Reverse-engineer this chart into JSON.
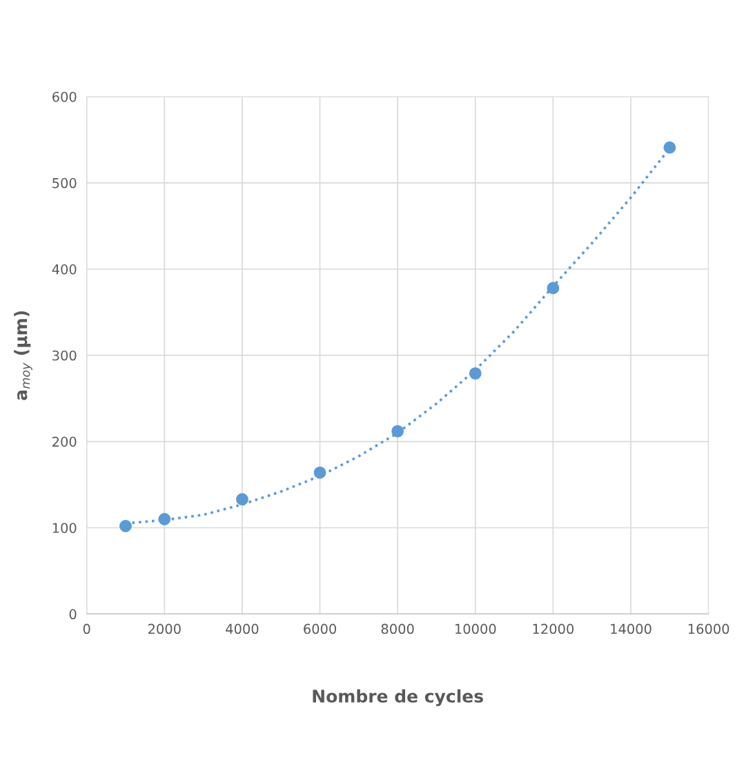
{
  "chart_data": {
    "type": "scatter",
    "xlabel": "Nombre de cycles",
    "ylabel": "a$_{moy}$ (µm)",
    "series": [
      {
        "color": "#5b9bd5",
        "marker": "circle",
        "x": [
          1000,
          2000,
          4000,
          6000,
          8000,
          10000,
          12000,
          15000
        ],
        "values": [
          102,
          110,
          133,
          164,
          212,
          279,
          378,
          541
        ]
      },
      {
        "type": "line",
        "color": "#5b9bd5",
        "line_style": "dotted",
        "marker": "none",
        "x": [
          1000,
          2000,
          3000,
          4000,
          5000,
          6000,
          7000,
          8000,
          9000,
          10000,
          11000,
          12000,
          13000,
          14000,
          15000
        ],
        "values": [
          105,
          109,
          115,
          127,
          142,
          160,
          183,
          210,
          244,
          283,
          328,
          380,
          430,
          483,
          540
        ]
      }
    ],
    "xlim": [
      0,
      16000
    ],
    "xticks": [
      0,
      2000,
      4000,
      6000,
      8000,
      10000,
      12000,
      14000,
      16000
    ],
    "ylim": [
      0,
      600
    ],
    "yticks": [
      0,
      100,
      200,
      300,
      400,
      500,
      600
    ],
    "grid": true
  }
}
